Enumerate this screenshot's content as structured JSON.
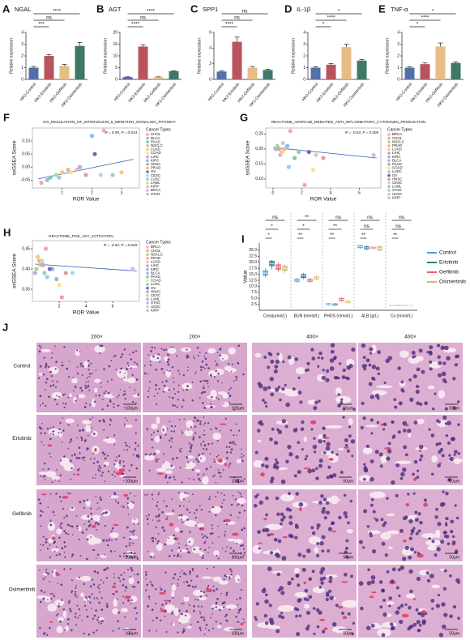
{
  "chart_data": [
    {
      "panel": "A",
      "type": "bar",
      "title": "NGAL",
      "y_label": "Relative expression",
      "categories": [
        "HK2-Control",
        "HK2-Erlotinib",
        "HK2-Gefitinib",
        "HK2-Osimertinib"
      ],
      "values": [
        1.0,
        2.0,
        1.15,
        2.85
      ],
      "errors": [
        0.1,
        0.12,
        0.12,
        0.3
      ],
      "colors": [
        "#5470a8",
        "#b8545e",
        "#e6bd86",
        "#407868"
      ],
      "ylim": [
        0,
        4
      ],
      "yticks": [
        0,
        1,
        2,
        3,
        4
      ],
      "significance": [
        "****",
        "ns",
        "***"
      ]
    },
    {
      "panel": "B",
      "type": "bar",
      "title": "AGT",
      "y_label": "Relative expression",
      "categories": [
        "HK2-Control",
        "HK2-Erlotinib",
        "HK2-Gefitinib",
        "HK2-Osimertinib"
      ],
      "values": [
        1.0,
        14.0,
        1.0,
        3.5
      ],
      "errors": [
        0.1,
        0.8,
        0.1,
        0.2
      ],
      "colors": [
        "#5470a8",
        "#b8545e",
        "#e6bd86",
        "#407868"
      ],
      "ylim": [
        0,
        20
      ],
      "yticks": [
        0,
        5,
        10,
        15,
        20
      ],
      "significance": [
        "****",
        "ns",
        "****"
      ]
    },
    {
      "panel": "C",
      "type": "bar",
      "title": "SPP1",
      "y_label": "Relative expression",
      "categories": [
        "HK2-Control",
        "HK2-Erlotinib",
        "HK2-Gefitinib",
        "HK2-Osimertinib"
      ],
      "values": [
        1.0,
        4.8,
        1.5,
        1.2
      ],
      "errors": [
        0.1,
        0.6,
        0.15,
        0.1
      ],
      "colors": [
        "#5470a8",
        "#b8545e",
        "#e6bd86",
        "#407868"
      ],
      "ylim": [
        0,
        6
      ],
      "yticks": [
        0,
        2,
        4,
        6
      ],
      "significance": [
        "ns",
        "ns",
        "****"
      ]
    },
    {
      "panel": "D",
      "type": "bar",
      "title": "IL-1β",
      "y_label": "Relative expression",
      "categories": [
        "HK2-Control",
        "HK2-Erlotinib",
        "HK2-Gefitinib",
        "HK2-Osimertinib"
      ],
      "values": [
        1.0,
        1.25,
        2.75,
        1.6
      ],
      "errors": [
        0.08,
        0.1,
        0.25,
        0.1
      ],
      "colors": [
        "#5470a8",
        "#b8545e",
        "#e6bd86",
        "#407868"
      ],
      "ylim": [
        0,
        4
      ],
      "yticks": [
        0,
        1,
        2,
        3,
        4
      ],
      "significance": [
        "*",
        "****",
        "*"
      ]
    },
    {
      "panel": "E",
      "type": "bar",
      "title": "TNF-α",
      "y_label": "Relative expression",
      "categories": [
        "HK2-Control",
        "HK2-Erlotinib",
        "HK2-Gefitinib",
        "HK2-Osimertinib"
      ],
      "values": [
        1.0,
        1.3,
        2.8,
        1.4
      ],
      "errors": [
        0.08,
        0.1,
        0.3,
        0.1
      ],
      "colors": [
        "#5470a8",
        "#b8545e",
        "#e6bd86",
        "#407868"
      ],
      "ylim": [
        0,
        4
      ],
      "yticks": [
        0,
        1,
        2,
        3,
        4
      ],
      "significance": [
        "*",
        "****",
        "*"
      ]
    },
    {
      "panel": "F",
      "type": "scatter",
      "title": "GO_REGULATION_OF_INTERLEUKIN_8_MEDIATED_SIGNALING_PATHWAY",
      "stat": "R = 0.59, P = 0.014",
      "x_label": "ROR Value",
      "y_label": "ssGSEA Score",
      "legend_title": "Cancer Types",
      "xlim": [
        0,
        3.6
      ],
      "xticks": [
        1,
        2,
        3
      ],
      "ylim": [
        -0.08,
        0.15
      ],
      "yticks": [
        -0.05,
        {
          "value": 0,
          "label": "0.00"
        },
        0.05,
        {
          "value": 0.1,
          "label": "0.10"
        }
      ],
      "trend": {
        "x": [
          0.2,
          3.4
        ],
        "y": [
          -0.045,
          0.03
        ]
      },
      "series": [
        {
          "name": "CHOL",
          "color": "#f4a6a6",
          "x": 0.3,
          "y": -0.06
        },
        {
          "name": "BLCA",
          "color": "#aab6e0",
          "x": 0.5,
          "y": -0.05
        },
        {
          "name": "PAAD",
          "color": "#7fc8a9",
          "x": 0.6,
          "y": -0.04
        },
        {
          "name": "NSCLC",
          "color": "#b0d98a",
          "x": 0.8,
          "y": -0.03
        },
        {
          "name": "LUAD",
          "color": "#f7c97b",
          "x": 1.0,
          "y": -0.02
        },
        {
          "name": "COAD",
          "color": "#ffe08a",
          "x": 1.3,
          "y": -0.02
        },
        {
          "name": "LIHC",
          "color": "#c9a0dc",
          "x": 1.6,
          "y": 0.0
        },
        {
          "name": "KIRC",
          "color": "#8fb8e8",
          "x": 2.0,
          "y": 0.12
        },
        {
          "name": "HNSC",
          "color": "#e89a9a",
          "x": 1.8,
          "y": -0.03
        },
        {
          "name": "PRAD",
          "color": "#f2b880",
          "x": 1.2,
          "y": -0.01
        },
        {
          "name": "OV",
          "color": "#7a62c0",
          "x": 2.1,
          "y": 0.05
        },
        {
          "name": "CESC",
          "color": "#a8d8e8",
          "x": 2.3,
          "y": -0.03
        },
        {
          "name": "LUSC",
          "color": "#9ad0b0",
          "x": 2.7,
          "y": -0.03
        },
        {
          "name": "LAML",
          "color": "#f0d080",
          "x": 3.0,
          "y": -0.02
        },
        {
          "name": "KIRP",
          "color": "#c0c0e8",
          "x": 1.5,
          "y": -0.01
        },
        {
          "name": "BRCA",
          "color": "#e8b0c8",
          "x": 2.4,
          "y": 0.14
        },
        {
          "name": "STAD",
          "color": "#a0c8f0",
          "x": 0.9,
          "y": -0.04
        }
      ]
    },
    {
      "panel": "G",
      "type": "scatter",
      "title": "REACTOME_ADORA2B_MEDIATED_ANTI_INFLAMMATORY_CYTOKINES_PRODUCTION",
      "stat": "R = -0.63, P = 0.006",
      "x_label": "ROR Value",
      "y_label": "ssGSEA Score",
      "legend_title": "Cancer Types",
      "xlim": [
        -0.5,
        7.5
      ],
      "xticks": [
        0,
        2,
        4,
        6
      ],
      "ylim": [
        0.07,
        0.27
      ],
      "yticks": [
        {
          "value": 0.1,
          "label": "0.10"
        },
        0.15,
        {
          "value": 0.2,
          "label": "0.20"
        },
        0.25
      ],
      "trend": {
        "x": [
          0,
          7.2
        ],
        "y": [
          0.205,
          0.17
        ]
      },
      "series": [
        {
          "name": "BRCA",
          "color": "#e8b0c8",
          "x": 0.5,
          "y": 0.18
        },
        {
          "name": "CHOL",
          "color": "#f4a6a6",
          "x": 1.2,
          "y": 0.26
        },
        {
          "name": "NSCLC",
          "color": "#b0d98a",
          "x": 0.3,
          "y": 0.21
        },
        {
          "name": "PRAD",
          "color": "#f2b880",
          "x": 0.8,
          "y": 0.2
        },
        {
          "name": "LUAD",
          "color": "#f7c97b",
          "x": 0.6,
          "y": 0.19
        },
        {
          "name": "LIHC",
          "color": "#c9a0dc",
          "x": 0.4,
          "y": 0.2
        },
        {
          "name": "KIRC",
          "color": "#8fb8e8",
          "x": 1.0,
          "y": 0.21
        },
        {
          "name": "BLCA",
          "color": "#aab6e0",
          "x": 0.2,
          "y": 0.2
        },
        {
          "name": "PAAD",
          "color": "#7fc8a9",
          "x": 1.5,
          "y": 0.17
        },
        {
          "name": "COAD",
          "color": "#ffe08a",
          "x": 2.8,
          "y": 0.13
        },
        {
          "name": "LUSC",
          "color": "#9ad0b0",
          "x": 1.8,
          "y": 0.19
        },
        {
          "name": "OV",
          "color": "#7a62c0",
          "x": 2.5,
          "y": 0.19
        },
        {
          "name": "HNSC",
          "color": "#e89a9a",
          "x": 3.5,
          "y": 0.17
        },
        {
          "name": "CESC",
          "color": "#a8d8e8",
          "x": 0.7,
          "y": 0.22
        },
        {
          "name": "LAML",
          "color": "#f0a0a0",
          "x": 2.2,
          "y": 0.08
        },
        {
          "name": "STAD",
          "color": "#a0c8f0",
          "x": 1.1,
          "y": 0.14
        },
        {
          "name": "UCEC",
          "color": "#d0d8a0",
          "x": 3.0,
          "y": 0.18
        },
        {
          "name": "KIRP",
          "color": "#c0c0e8",
          "x": 7.0,
          "y": 0.18
        }
      ]
    },
    {
      "panel": "H",
      "type": "scatter",
      "title": "REACTOME_PI3K_AKT_ACTIVATION",
      "stat": "R = -0.52, P = 0.028",
      "x_label": "ROR Value",
      "y_label": "ssGSEA Score",
      "legend_title": "Cancer Types",
      "xlim": [
        0,
        8
      ],
      "xticks": [
        2,
        4,
        6
      ],
      "ylim": [
        0.32,
        0.47
      ],
      "yticks": [
        0.35,
        {
          "value": 0.4,
          "label": "0.40"
        },
        0.45
      ],
      "trend": {
        "x": [
          0.2,
          7.8
        ],
        "y": [
          0.412,
          0.395
        ]
      },
      "series": [
        {
          "name": "BRCA",
          "color": "#e8b0c8",
          "x": 0.5,
          "y": 0.42
        },
        {
          "name": "CHOL",
          "color": "#f4a6a6",
          "x": 1.0,
          "y": 0.45
        },
        {
          "name": "NSCLC",
          "color": "#b0d98a",
          "x": 0.3,
          "y": 0.4
        },
        {
          "name": "PRAD",
          "color": "#f2b880",
          "x": 0.6,
          "y": 0.41
        },
        {
          "name": "LUAD",
          "color": "#f7c97b",
          "x": 0.4,
          "y": 0.43
        },
        {
          "name": "LIHC",
          "color": "#c9a0dc",
          "x": 0.8,
          "y": 0.41
        },
        {
          "name": "KIRC",
          "color": "#8fb8e8",
          "x": 1.5,
          "y": 0.4
        },
        {
          "name": "BLCA",
          "color": "#aab6e0",
          "x": 0.2,
          "y": 0.39
        },
        {
          "name": "PAAD",
          "color": "#7fc8a9",
          "x": 1.8,
          "y": 0.375
        },
        {
          "name": "COAD",
          "color": "#ffe08a",
          "x": 2.0,
          "y": 0.36
        },
        {
          "name": "LUSC",
          "color": "#9ad0b0",
          "x": 0.9,
          "y": 0.39
        },
        {
          "name": "OV",
          "color": "#7a62c0",
          "x": 1.3,
          "y": 0.4
        },
        {
          "name": "HNSC",
          "color": "#e89a9a",
          "x": 2.5,
          "y": 0.39
        },
        {
          "name": "CESC",
          "color": "#a8d8e8",
          "x": 3.0,
          "y": 0.39
        },
        {
          "name": "LAML",
          "color": "#f0a0a0",
          "x": 2.2,
          "y": 0.33
        },
        {
          "name": "STAD",
          "color": "#a0c8f0",
          "x": 1.1,
          "y": 0.38
        },
        {
          "name": "UCEC",
          "color": "#d0d8a0",
          "x": 0.7,
          "y": 0.42
        },
        {
          "name": "KIRP",
          "color": "#c0c0e8",
          "x": 7.5,
          "y": 0.4
        }
      ]
    },
    {
      "panel": "I",
      "type": "box",
      "y_label": "Value",
      "categories": [
        "Crea(umol/L)",
        "BUN (mmol/L)",
        "PHOS (mmol/L)",
        "ALB (g/L)",
        "Ca (mmol/L)"
      ],
      "ylim": [
        0,
        28
      ],
      "yticks": [
        2.5,
        {
          "value": 5,
          "label": "5.0"
        },
        7.5,
        {
          "value": 10,
          "label": "10.0"
        },
        12.5,
        {
          "value": 15,
          "label": "15.0"
        },
        17.5,
        {
          "value": 20,
          "label": "20.0"
        },
        22.5,
        {
          "value": 25,
          "label": "25.0"
        }
      ],
      "significance": [
        [
          "ns",
          "*",
          "*"
        ],
        [
          "**",
          "*",
          "**"
        ],
        [
          "ns",
          "**",
          "**"
        ],
        [
          "ns",
          "ns",
          "**"
        ],
        [
          "ns",
          "ns",
          "**"
        ]
      ],
      "series": [
        {
          "name": "Control",
          "color": "#4aa3d8",
          "values": [
            [
              13.5,
              14.5,
              15.5,
              16.5,
              17.5
            ],
            [
              11.5,
              12,
              12.5,
              13,
              13.5
            ],
            [
              2,
              2.2,
              2.5,
              2.8,
              3
            ],
            [
              25.5,
              26,
              26.5,
              27,
              27.3
            ],
            [
              1.8,
              1.9,
              2,
              2.1,
              2.2
            ]
          ]
        },
        {
          "name": "Erlotinib",
          "color": "#2e7a8a",
          "values": [
            [
              17,
              18.5,
              19.5,
              20.5,
              21
            ],
            [
              13,
              13.5,
              14.5,
              15,
              15.5
            ],
            [
              1.8,
              2.1,
              2.4,
              2.7,
              3
            ],
            [
              25,
              25.5,
              26,
              26.5,
              27
            ],
            [
              1.7,
              1.8,
              1.9,
              2,
              2.1
            ]
          ]
        },
        {
          "name": "Gefitinib",
          "color": "#e8606a",
          "values": [
            [
              16,
              17,
              18,
              19,
              20
            ],
            [
              11.5,
              12,
              12.5,
              13,
              13.5
            ],
            [
              3.5,
              4,
              4.5,
              5,
              5.5
            ],
            [
              25.5,
              25.8,
              26,
              26.3,
              26.5
            ],
            [
              1.8,
              1.9,
              2,
              2.1,
              2.2
            ]
          ]
        },
        {
          "name": "Osimertinib",
          "color": "#c8c070",
          "values": [
            [
              15.5,
              16.5,
              17.5,
              18.5,
              19
            ],
            [
              12.5,
              13,
              13.5,
              14,
              14.5
            ],
            [
              2.8,
              3.2,
              3.5,
              3.9,
              4.2
            ],
            [
              24.5,
              25,
              25.8,
              26.5,
              27
            ],
            [
              1.8,
              1.9,
              2,
              2.1,
              2.2
            ]
          ]
        }
      ]
    }
  ],
  "histology": {
    "panel": "J",
    "column_headers": [
      "200×",
      "200×",
      "400×",
      "400×"
    ],
    "rows": [
      "Control",
      "Erlotinib",
      "Gefitinib",
      "Osimertinib"
    ],
    "scale_bars": [
      "100μm",
      "100μm",
      "50μm",
      "50μm"
    ]
  }
}
